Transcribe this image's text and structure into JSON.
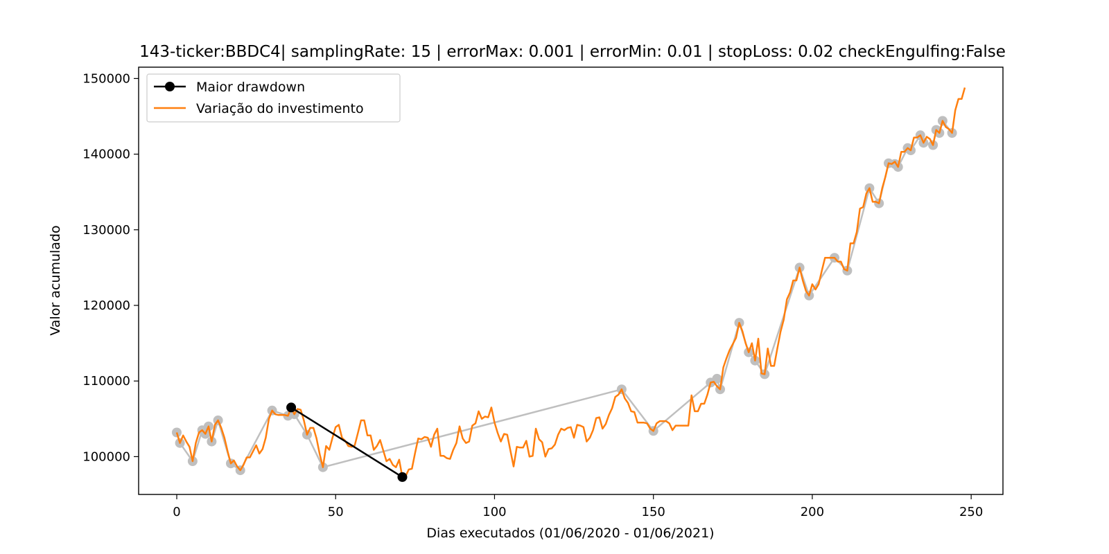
{
  "chart_data": {
    "type": "line",
    "title": "143-ticker:BBDC4| samplingRate: 15 | errorMax: 0.001 | errorMin: 0.01 | stopLoss: 0.02 checkEngulfing:False",
    "xlabel": "Dias executados (01/06/2020 - 01/06/2021)",
    "ylabel": "Valor acumulado",
    "xlim": [
      -12,
      260
    ],
    "ylim": [
      95000,
      151500
    ],
    "xticks": [
      0,
      50,
      100,
      150,
      200,
      250
    ],
    "yticks": [
      100000,
      110000,
      120000,
      130000,
      140000,
      150000
    ],
    "xtick_labels": [
      "0",
      "50",
      "100",
      "150",
      "200",
      "250"
    ],
    "ytick_labels": [
      "100000",
      "110000",
      "120000",
      "130000",
      "140000",
      "150000"
    ],
    "grid": false,
    "legend_position": "top-left",
    "colors": {
      "investment": "#ff7f0e",
      "drawdown": "#000000",
      "pivots": "#bfbfbf"
    },
    "series": [
      {
        "name": "Maior drawdown",
        "type": "line-marker",
        "points": [
          [
            36,
            106500
          ],
          [
            71,
            97300
          ]
        ]
      },
      {
        "name": "Variação do investimento",
        "type": "line",
        "points": [
          [
            0,
            103200
          ],
          [
            1,
            101800
          ],
          [
            2,
            102800
          ],
          [
            3,
            102000
          ],
          [
            4,
            101300
          ],
          [
            5,
            99400
          ],
          [
            6,
            101800
          ],
          [
            7,
            103200
          ],
          [
            8,
            103500
          ],
          [
            9,
            103000
          ],
          [
            10,
            104000
          ],
          [
            11,
            102000
          ],
          [
            12,
            104200
          ],
          [
            13,
            104800
          ],
          [
            14,
            103800
          ],
          [
            15,
            102500
          ],
          [
            16,
            100700
          ],
          [
            17,
            99100
          ],
          [
            18,
            99500
          ],
          [
            19,
            98700
          ],
          [
            20,
            98200
          ],
          [
            21,
            98900
          ],
          [
            22,
            99900
          ],
          [
            23,
            99900
          ],
          [
            24,
            100700
          ],
          [
            25,
            101500
          ],
          [
            26,
            100400
          ],
          [
            27,
            101000
          ],
          [
            28,
            102500
          ],
          [
            29,
            105000
          ],
          [
            30,
            106100
          ],
          [
            31,
            105600
          ],
          [
            32,
            105500
          ],
          [
            33,
            105500
          ],
          [
            34,
            105500
          ],
          [
            35,
            105400
          ],
          [
            36,
            106500
          ],
          [
            37,
            105600
          ],
          [
            38,
            106300
          ],
          [
            39,
            106200
          ],
          [
            40,
            104800
          ],
          [
            41,
            102900
          ],
          [
            42,
            103800
          ],
          [
            43,
            103800
          ],
          [
            44,
            102400
          ],
          [
            45,
            100300
          ],
          [
            46,
            98600
          ],
          [
            47,
            101400
          ],
          [
            48,
            100900
          ],
          [
            49,
            102500
          ],
          [
            50,
            103900
          ],
          [
            51,
            104200
          ],
          [
            52,
            102500
          ],
          [
            53,
            102100
          ],
          [
            54,
            101400
          ],
          [
            55,
            101300
          ],
          [
            56,
            101500
          ],
          [
            57,
            103100
          ],
          [
            58,
            104800
          ],
          [
            59,
            104800
          ],
          [
            60,
            102800
          ],
          [
            61,
            102800
          ],
          [
            62,
            100900
          ],
          [
            63,
            101400
          ],
          [
            64,
            102200
          ],
          [
            65,
            100800
          ],
          [
            66,
            99400
          ],
          [
            67,
            99700
          ],
          [
            68,
            98900
          ],
          [
            69,
            98600
          ],
          [
            70,
            99600
          ],
          [
            71,
            97300
          ],
          [
            72,
            97400
          ],
          [
            73,
            98300
          ],
          [
            74,
            98400
          ],
          [
            75,
            100500
          ],
          [
            76,
            102400
          ],
          [
            77,
            102300
          ],
          [
            78,
            102600
          ],
          [
            79,
            102500
          ],
          [
            80,
            101300
          ],
          [
            81,
            102900
          ],
          [
            82,
            103700
          ],
          [
            83,
            100100
          ],
          [
            84,
            100100
          ],
          [
            85,
            99800
          ],
          [
            86,
            99700
          ],
          [
            87,
            100900
          ],
          [
            88,
            101800
          ],
          [
            89,
            104000
          ],
          [
            90,
            102400
          ],
          [
            91,
            101800
          ],
          [
            92,
            102000
          ],
          [
            93,
            104100
          ],
          [
            94,
            104400
          ],
          [
            95,
            106000
          ],
          [
            96,
            105000
          ],
          [
            97,
            105300
          ],
          [
            98,
            105200
          ],
          [
            99,
            106500
          ],
          [
            100,
            104500
          ],
          [
            101,
            103100
          ],
          [
            102,
            102000
          ],
          [
            103,
            103000
          ],
          [
            104,
            102900
          ],
          [
            105,
            100800
          ],
          [
            106,
            98700
          ],
          [
            107,
            101300
          ],
          [
            108,
            101200
          ],
          [
            109,
            101200
          ],
          [
            110,
            102100
          ],
          [
            111,
            100000
          ],
          [
            112,
            100100
          ],
          [
            113,
            103700
          ],
          [
            114,
            102300
          ],
          [
            115,
            101900
          ],
          [
            116,
            100000
          ],
          [
            117,
            101000
          ],
          [
            118,
            101100
          ],
          [
            119,
            101600
          ],
          [
            120,
            102900
          ],
          [
            121,
            103700
          ],
          [
            122,
            103500
          ],
          [
            123,
            103800
          ],
          [
            124,
            103900
          ],
          [
            125,
            102500
          ],
          [
            126,
            104200
          ],
          [
            127,
            104100
          ],
          [
            128,
            103900
          ],
          [
            129,
            102000
          ],
          [
            130,
            102500
          ],
          [
            131,
            103500
          ],
          [
            132,
            105100
          ],
          [
            133,
            105200
          ],
          [
            134,
            103700
          ],
          [
            135,
            104300
          ],
          [
            136,
            105500
          ],
          [
            137,
            106400
          ],
          [
            138,
            107900
          ],
          [
            139,
            108200
          ],
          [
            140,
            108900
          ],
          [
            141,
            107700
          ],
          [
            142,
            107100
          ],
          [
            143,
            106000
          ],
          [
            144,
            105900
          ],
          [
            145,
            104500
          ],
          [
            146,
            104500
          ],
          [
            147,
            104500
          ],
          [
            148,
            104400
          ],
          [
            149,
            103700
          ],
          [
            150,
            103400
          ],
          [
            151,
            104400
          ],
          [
            152,
            104700
          ],
          [
            153,
            104700
          ],
          [
            154,
            104700
          ],
          [
            155,
            104400
          ],
          [
            156,
            103500
          ],
          [
            157,
            104100
          ],
          [
            158,
            104100
          ],
          [
            159,
            104100
          ],
          [
            160,
            104100
          ],
          [
            161,
            104100
          ],
          [
            162,
            108100
          ],
          [
            163,
            106000
          ],
          [
            164,
            106000
          ],
          [
            165,
            107000
          ],
          [
            166,
            107000
          ],
          [
            167,
            108200
          ],
          [
            168,
            109800
          ],
          [
            169,
            109900
          ],
          [
            170,
            109300
          ],
          [
            171,
            108900
          ],
          [
            172,
            111800
          ],
          [
            173,
            113000
          ],
          [
            174,
            114100
          ],
          [
            175,
            114900
          ],
          [
            176,
            115700
          ],
          [
            177,
            117700
          ],
          [
            178,
            116600
          ],
          [
            179,
            115000
          ],
          [
            180,
            113800
          ],
          [
            181,
            115000
          ],
          [
            182,
            112700
          ],
          [
            183,
            115600
          ],
          [
            184,
            111000
          ],
          [
            185,
            110900
          ],
          [
            186,
            114300
          ],
          [
            187,
            112000
          ],
          [
            188,
            112000
          ],
          [
            189,
            114300
          ],
          [
            190,
            116500
          ],
          [
            191,
            118100
          ],
          [
            192,
            120800
          ],
          [
            193,
            121700
          ],
          [
            194,
            123300
          ],
          [
            195,
            123300
          ],
          [
            196,
            125000
          ],
          [
            197,
            123300
          ],
          [
            198,
            121900
          ],
          [
            199,
            121300
          ],
          [
            200,
            122800
          ],
          [
            201,
            122100
          ],
          [
            202,
            122800
          ],
          [
            203,
            124600
          ],
          [
            204,
            126300
          ],
          [
            205,
            126300
          ],
          [
            206,
            126300
          ],
          [
            207,
            126300
          ],
          [
            208,
            125800
          ],
          [
            209,
            125800
          ],
          [
            210,
            124800
          ],
          [
            211,
            124600
          ],
          [
            212,
            128200
          ],
          [
            213,
            128200
          ],
          [
            214,
            129700
          ],
          [
            215,
            132800
          ],
          [
            216,
            133000
          ],
          [
            217,
            134800
          ],
          [
            218,
            135500
          ],
          [
            219,
            133700
          ],
          [
            220,
            133700
          ],
          [
            221,
            133500
          ],
          [
            222,
            135500
          ],
          [
            223,
            137000
          ],
          [
            224,
            138800
          ],
          [
            225,
            138700
          ],
          [
            226,
            139000
          ],
          [
            227,
            138300
          ],
          [
            228,
            140300
          ],
          [
            229,
            140300
          ],
          [
            230,
            140800
          ],
          [
            231,
            140500
          ],
          [
            232,
            142200
          ],
          [
            233,
            142200
          ],
          [
            234,
            142500
          ],
          [
            235,
            141500
          ],
          [
            236,
            142300
          ],
          [
            237,
            142000
          ],
          [
            238,
            141200
          ],
          [
            239,
            143200
          ],
          [
            240,
            142800
          ],
          [
            241,
            144400
          ],
          [
            242,
            143600
          ],
          [
            243,
            143300
          ],
          [
            244,
            142800
          ],
          [
            245,
            145800
          ],
          [
            246,
            147300
          ],
          [
            247,
            147300
          ],
          [
            248,
            148800
          ]
        ]
      },
      {
        "type": "pivot-line",
        "points": [
          [
            0,
            103200
          ],
          [
            1,
            101800
          ],
          [
            5,
            99400
          ],
          [
            8,
            103500
          ],
          [
            9,
            103000
          ],
          [
            10,
            104000
          ],
          [
            11,
            102000
          ],
          [
            13,
            104800
          ],
          [
            17,
            99100
          ],
          [
            20,
            98200
          ],
          [
            30,
            106100
          ],
          [
            35,
            105400
          ],
          [
            36,
            106500
          ],
          [
            37,
            105600
          ],
          [
            41,
            102900
          ],
          [
            46,
            98600
          ],
          [
            140,
            108900
          ],
          [
            150,
            103400
          ],
          [
            168,
            109800
          ],
          [
            170,
            110300
          ],
          [
            171,
            108900
          ],
          [
            177,
            117700
          ],
          [
            180,
            113800
          ],
          [
            182,
            112700
          ],
          [
            185,
            110900
          ],
          [
            196,
            125000
          ],
          [
            199,
            121300
          ],
          [
            207,
            126300
          ],
          [
            211,
            124600
          ],
          [
            218,
            135500
          ],
          [
            221,
            133500
          ],
          [
            224,
            138800
          ],
          [
            226,
            138700
          ],
          [
            227,
            138300
          ],
          [
            230,
            140800
          ],
          [
            231,
            140500
          ],
          [
            234,
            142500
          ],
          [
            235,
            141500
          ],
          [
            238,
            141200
          ],
          [
            239,
            143200
          ],
          [
            240,
            142800
          ],
          [
            241,
            144400
          ],
          [
            244,
            142800
          ]
        ]
      }
    ]
  }
}
